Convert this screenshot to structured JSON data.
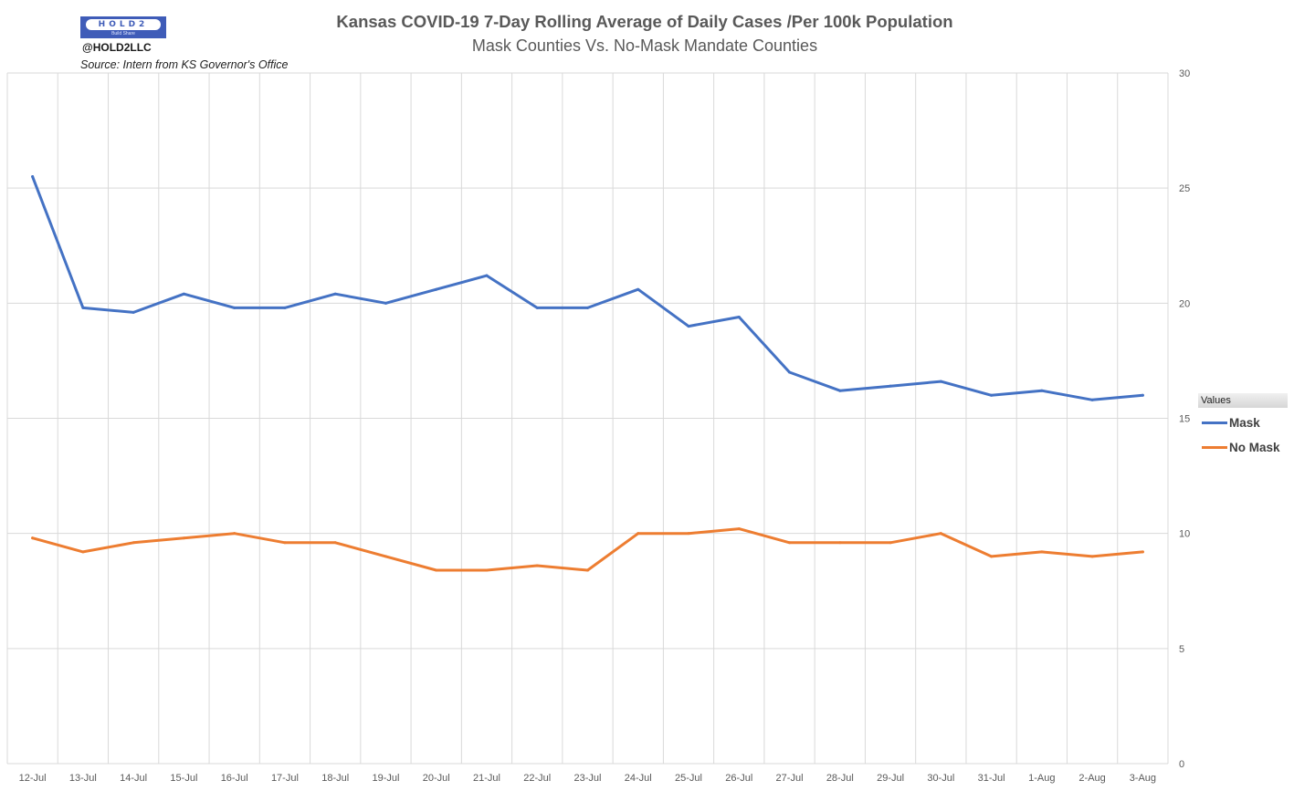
{
  "header": {
    "logo_text": "HOLD2",
    "logo_subtext": "Build Share",
    "handle": "@HOLD2LLC",
    "source": "Source: Intern from KS Governor's Office"
  },
  "legend": {
    "title": "Values",
    "items": [
      {
        "label": "Mask",
        "color": "#4472c4"
      },
      {
        "label": "No Mask",
        "color": "#ed7d31"
      }
    ]
  },
  "chart_data": {
    "type": "line",
    "title": "Kansas COVID-19 7-Day Rolling Average of Daily Cases /Per 100k Population",
    "subtitle": "Mask Counties Vs. No-Mask Mandate Counties",
    "xlabel": "",
    "ylabel": "",
    "categories": [
      "12-Jul",
      "13-Jul",
      "14-Jul",
      "15-Jul",
      "16-Jul",
      "17-Jul",
      "18-Jul",
      "19-Jul",
      "20-Jul",
      "21-Jul",
      "22-Jul",
      "23-Jul",
      "24-Jul",
      "25-Jul",
      "26-Jul",
      "27-Jul",
      "28-Jul",
      "29-Jul",
      "30-Jul",
      "31-Jul",
      "1-Aug",
      "2-Aug",
      "3-Aug"
    ],
    "series": [
      {
        "name": "Mask",
        "color": "#4472c4",
        "values": [
          25.5,
          19.8,
          19.6,
          20.4,
          19.8,
          19.8,
          20.4,
          20.0,
          20.6,
          21.2,
          19.8,
          19.8,
          20.6,
          19.0,
          19.4,
          17.0,
          16.2,
          16.4,
          16.6,
          16.0,
          16.2,
          15.8,
          16.0
        ]
      },
      {
        "name": "No Mask",
        "color": "#ed7d31",
        "values": [
          9.8,
          9.2,
          9.6,
          9.8,
          10.0,
          9.6,
          9.6,
          9.0,
          8.4,
          8.4,
          8.6,
          8.4,
          10.0,
          10.0,
          10.2,
          9.6,
          9.6,
          9.6,
          10.0,
          9.0,
          9.2,
          9.0,
          9.2
        ]
      }
    ],
    "ylim": [
      0,
      30
    ],
    "yticks": [
      0,
      5,
      10,
      15,
      20,
      25,
      30
    ],
    "y_axis_side": "right",
    "grid": true,
    "legend_position": "right"
  }
}
